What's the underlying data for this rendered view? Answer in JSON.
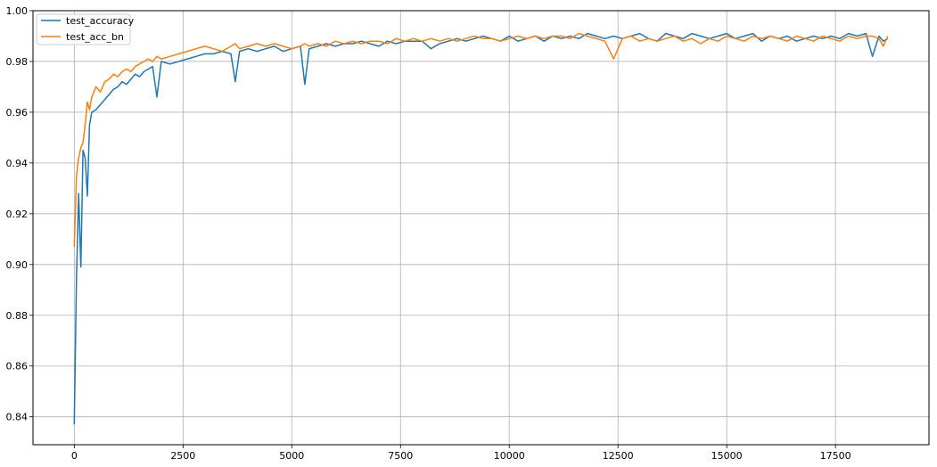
{
  "chart_data": {
    "type": "line",
    "title": "",
    "xlabel": "",
    "ylabel": "",
    "xlim": [
      -950,
      19650
    ],
    "ylim": [
      0.829,
      1.0
    ],
    "xticks": [
      0,
      2500,
      5000,
      7500,
      10000,
      12500,
      15000,
      17500
    ],
    "yticks": [
      0.84,
      0.86,
      0.88,
      0.9,
      0.92,
      0.94,
      0.96,
      0.98,
      1.0
    ],
    "xtick_labels": [
      "0",
      "2500",
      "5000",
      "7500",
      "10000",
      "12500",
      "15000",
      "17500"
    ],
    "ytick_labels": [
      "0.84",
      "0.86",
      "0.88",
      "0.90",
      "0.92",
      "0.94",
      "0.96",
      "0.98",
      "1.00"
    ],
    "grid": true,
    "legend_position": "top-left",
    "x": [
      0,
      50,
      100,
      150,
      200,
      250,
      300,
      350,
      400,
      500,
      600,
      700,
      800,
      900,
      1000,
      1100,
      1200,
      1300,
      1400,
      1500,
      1600,
      1700,
      1800,
      1900,
      2000,
      2200,
      2400,
      2600,
      2800,
      3000,
      3200,
      3400,
      3600,
      3700,
      3800,
      4000,
      4200,
      4400,
      4600,
      4800,
      5000,
      5200,
      5300,
      5400,
      5600,
      5800,
      6000,
      6200,
      6400,
      6600,
      6800,
      7000,
      7200,
      7400,
      7600,
      7800,
      8000,
      8200,
      8400,
      8600,
      8800,
      9000,
      9200,
      9400,
      9600,
      9800,
      10000,
      10200,
      10400,
      10600,
      10800,
      11000,
      11200,
      11400,
      11600,
      11800,
      12000,
      12200,
      12400,
      12600,
      12800,
      13000,
      13200,
      13400,
      13600,
      13800,
      14000,
      14200,
      14400,
      14600,
      14800,
      15000,
      15200,
      15400,
      15600,
      15800,
      16000,
      16200,
      16400,
      16600,
      16800,
      17000,
      17200,
      17400,
      17600,
      17800,
      18000,
      18200,
      18350,
      18500,
      18600,
      18700
    ],
    "series": [
      {
        "name": "test_accuracy",
        "color": "#1f77b4",
        "values": [
          0.837,
          0.895,
          0.928,
          0.899,
          0.945,
          0.942,
          0.927,
          0.955,
          0.96,
          0.961,
          0.963,
          0.965,
          0.967,
          0.969,
          0.97,
          0.972,
          0.971,
          0.973,
          0.975,
          0.974,
          0.976,
          0.977,
          0.978,
          0.966,
          0.98,
          0.979,
          0.98,
          0.981,
          0.982,
          0.983,
          0.983,
          0.984,
          0.983,
          0.972,
          0.984,
          0.985,
          0.984,
          0.985,
          0.986,
          0.984,
          0.985,
          0.986,
          0.971,
          0.985,
          0.986,
          0.987,
          0.986,
          0.987,
          0.987,
          0.988,
          0.987,
          0.986,
          0.988,
          0.987,
          0.988,
          0.988,
          0.988,
          0.985,
          0.987,
          0.988,
          0.989,
          0.988,
          0.989,
          0.99,
          0.989,
          0.988,
          0.99,
          0.988,
          0.989,
          0.99,
          0.988,
          0.99,
          0.989,
          0.99,
          0.989,
          0.991,
          0.99,
          0.989,
          0.99,
          0.989,
          0.99,
          0.991,
          0.989,
          0.988,
          0.991,
          0.99,
          0.989,
          0.991,
          0.99,
          0.989,
          0.99,
          0.991,
          0.989,
          0.99,
          0.991,
          0.988,
          0.99,
          0.989,
          0.99,
          0.988,
          0.989,
          0.99,
          0.989,
          0.99,
          0.989,
          0.991,
          0.99,
          0.991,
          0.982,
          0.99,
          0.988,
          0.989
        ]
      },
      {
        "name": "test_acc_bn",
        "color": "#ff7f0e",
        "values": [
          0.907,
          0.935,
          0.942,
          0.946,
          0.948,
          0.955,
          0.964,
          0.961,
          0.966,
          0.97,
          0.968,
          0.972,
          0.973,
          0.975,
          0.974,
          0.976,
          0.977,
          0.976,
          0.978,
          0.979,
          0.98,
          0.981,
          0.98,
          0.982,
          0.981,
          0.982,
          0.983,
          0.984,
          0.985,
          0.986,
          0.985,
          0.984,
          0.986,
          0.987,
          0.985,
          0.986,
          0.987,
          0.986,
          0.987,
          0.986,
          0.985,
          0.986,
          0.987,
          0.986,
          0.987,
          0.986,
          0.988,
          0.987,
          0.988,
          0.987,
          0.988,
          0.988,
          0.987,
          0.989,
          0.988,
          0.989,
          0.988,
          0.989,
          0.988,
          0.989,
          0.988,
          0.989,
          0.99,
          0.989,
          0.989,
          0.988,
          0.989,
          0.99,
          0.989,
          0.99,
          0.989,
          0.99,
          0.99,
          0.989,
          0.991,
          0.99,
          0.989,
          0.988,
          0.981,
          0.989,
          0.99,
          0.988,
          0.989,
          0.988,
          0.989,
          0.99,
          0.988,
          0.989,
          0.987,
          0.989,
          0.988,
          0.99,
          0.989,
          0.988,
          0.99,
          0.989,
          0.99,
          0.989,
          0.988,
          0.99,
          0.989,
          0.988,
          0.99,
          0.989,
          0.988,
          0.99,
          0.989,
          0.99,
          0.99,
          0.989,
          0.986,
          0.99
        ]
      }
    ]
  }
}
